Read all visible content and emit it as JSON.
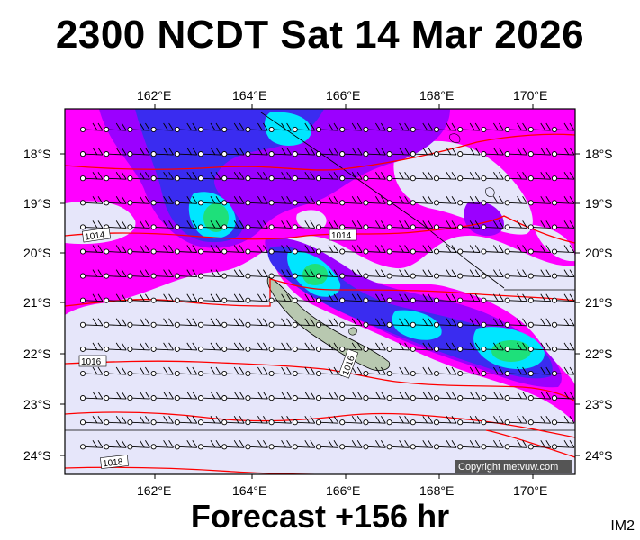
{
  "title": "2300 NCDT Sat 14 Mar 2026",
  "footer": "Forecast +156 hr",
  "product_code": "IM2",
  "copyright": "Copyright metvuw.com",
  "colors": {
    "background": "#e6e6fa",
    "magenta": "#ff00ff",
    "purple": "#9b00ff",
    "blue": "#3a2cf0",
    "cyan": "#00e6ff",
    "green": "#1ee07a",
    "isobar": "#ff0000",
    "land": "#b8c8b0"
  },
  "axes": {
    "lon_labels": [
      "162°E",
      "164°E",
      "166°E",
      "168°E",
      "170°E"
    ],
    "lat_labels": [
      "18°S",
      "19°S",
      "20°S",
      "21°S",
      "22°S",
      "23°S",
      "24°S"
    ]
  },
  "isobar_labels": [
    {
      "text": "1014",
      "id": "isobar-1014-west"
    },
    {
      "text": "1014",
      "id": "isobar-1014-center"
    },
    {
      "text": "1016",
      "id": "isobar-1016-west"
    },
    {
      "text": "1016",
      "id": "isobar-1016-center"
    },
    {
      "text": "1018",
      "id": "isobar-1018-west"
    }
  ]
}
